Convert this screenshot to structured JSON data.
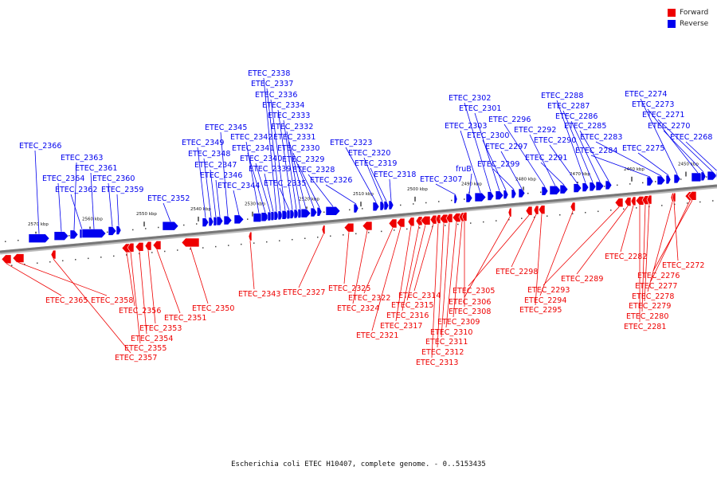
{
  "legend": [
    {
      "label": "Forward",
      "color": "#ee0000"
    },
    {
      "label": "Reverse",
      "color": "#0000ee"
    }
  ],
  "caption": "Escherichia coli ETEC H10407, complete genome. - 0..5153435",
  "colors": {
    "forward": "#ee0000",
    "reverse": "#0000ee",
    "backbone": "#777777",
    "ticks": "#111111"
  },
  "scale_ticks": [
    "2570 kbp",
    "2560 kbp",
    "2550 kbp",
    "2540 kbp",
    "2530 kbp",
    "2520 kbp",
    "2510 kbp",
    "2500 kbp",
    "2490 kbp",
    "2480 kbp",
    "2470 kbp",
    "2460 kbp",
    "2450 kbp"
  ],
  "reverse_genes": [
    "ETEC_2366",
    "ETEC_2364",
    "ETEC_2363",
    "ETEC_2362",
    "ETEC_2361",
    "ETEC_2360",
    "ETEC_2359",
    "ETEC_2352",
    "ETEC_2349",
    "ETEC_2348",
    "ETEC_2347",
    "ETEC_2346",
    "ETEC_2345",
    "ETEC_2344",
    "ETEC_2342",
    "ETEC_2341",
    "ETEC_2340",
    "ETEC_2339",
    "ETEC_2338",
    "ETEC_2337",
    "ETEC_2336",
    "ETEC_2335",
    "ETEC_2334",
    "ETEC_2333",
    "ETEC_2332",
    "ETEC_2331",
    "ETEC_2330",
    "ETEC_2329",
    "ETEC_2328",
    "ETEC_2326",
    "ETEC_2323",
    "ETEC_2320",
    "ETEC_2319",
    "ETEC_2318",
    "ETEC_2307",
    "fruB",
    "ETEC_2303",
    "ETEC_2302",
    "ETEC_2301",
    "ETEC_2300",
    "ETEC_2299",
    "ETEC_2297",
    "ETEC_2296",
    "ETEC_2292",
    "ETEC_2291",
    "ETEC_2290",
    "ETEC_2288",
    "ETEC_2287",
    "ETEC_2286",
    "ETEC_2285",
    "ETEC_2284",
    "ETEC_2283",
    "ETEC_2275",
    "ETEC_2274",
    "ETEC_2273",
    "ETEC_2271",
    "ETEC_2270",
    "ETEC_2268"
  ],
  "forward_genes": [
    "ETEC_2365",
    "ETEC_2358",
    "ETEC_2357",
    "ETEC_2356",
    "ETEC_2355",
    "ETEC_2354",
    "ETEC_2353",
    "ETEC_2351",
    "ETEC_2350",
    "ETEC_2343",
    "ETEC_2327",
    "ETEC_2325",
    "ETEC_2324",
    "ETEC_2322",
    "ETEC_2321",
    "ETEC_2317",
    "ETEC_2316",
    "ETEC_2315",
    "ETEC_2314",
    "ETEC_2313",
    "ETEC_2312",
    "ETEC_2311",
    "ETEC_2310",
    "ETEC_2309",
    "ETEC_2308",
    "ETEC_2306",
    "ETEC_2305",
    "ETEC_2298",
    "ETEC_2295",
    "ETEC_2294",
    "ETEC_2293",
    "ETEC_2289",
    "ETEC_2282",
    "ETEC_2281",
    "ETEC_2280",
    "ETEC_2279",
    "ETEC_2278",
    "ETEC_2277",
    "ETEC_2276",
    "ETEC_2272"
  ]
}
